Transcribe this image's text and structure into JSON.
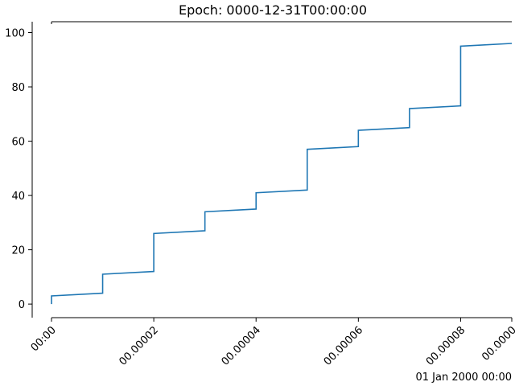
{
  "chart_data": {
    "type": "line",
    "title": "Epoch: 0000-12-31T00:00:00",
    "xlabel": "",
    "ylabel": "",
    "x_offset_label": "01 Jan 2000 00:00",
    "x_unit": "seconds after 01 Jan 2000 00:00",
    "xlim": [
      0,
      9e-05
    ],
    "ylim": [
      -5,
      104
    ],
    "grid": false,
    "x_ticks": [
      {
        "value": 0,
        "label": "00:00"
      },
      {
        "value": 2e-05,
        "label": "00.00002"
      },
      {
        "value": 4e-05,
        "label": "00.00004"
      },
      {
        "value": 6e-05,
        "label": "00.00006"
      },
      {
        "value": 8e-05,
        "label": "00.00008"
      },
      {
        "value": 9e-05,
        "label": "00.0000"
      }
    ],
    "y_ticks": [
      0,
      20,
      40,
      60,
      80,
      100
    ],
    "series": [
      {
        "color": "#1f77b4",
        "x": [
          0,
          0,
          1e-05,
          1e-05,
          2e-05,
          2e-05,
          3e-05,
          3e-05,
          4e-05,
          4e-05,
          5e-05,
          5e-05,
          6e-05,
          6e-05,
          7e-05,
          7e-05,
          8e-05,
          8e-05,
          9e-05
        ],
        "y": [
          0,
          3,
          4,
          11,
          12,
          26,
          27,
          34,
          35,
          41,
          42,
          57,
          58,
          64,
          65,
          72,
          73,
          95,
          96
        ]
      }
    ]
  }
}
